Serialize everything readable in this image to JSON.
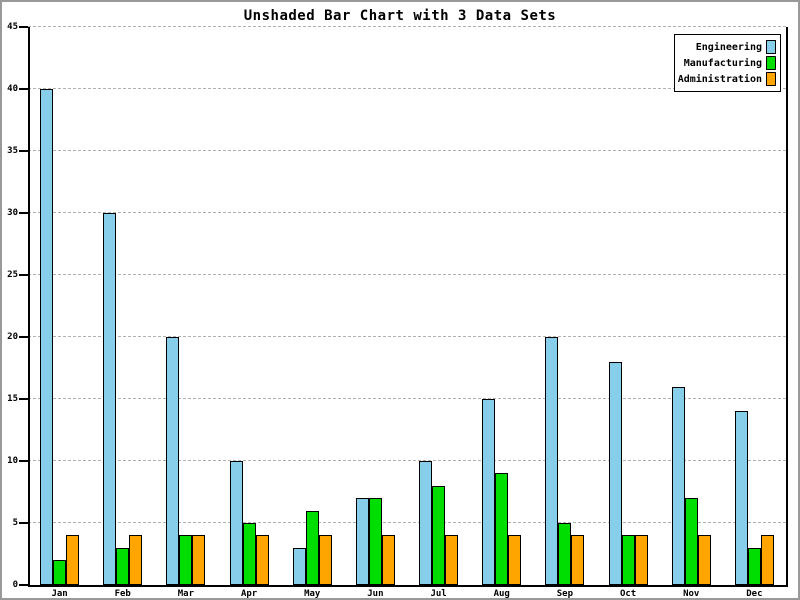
{
  "title": "Unshaded Bar Chart with 3 Data Sets",
  "colors": {
    "engineering": "#87CEEB",
    "manufacturing": "#00DD00",
    "administration": "#FFA500",
    "gridline": "#b0b0b0",
    "axis": "#000000",
    "frame_border": "#999999"
  },
  "chart_data": {
    "type": "bar",
    "title": "Unshaded Bar Chart with 3 Data Sets",
    "categories": [
      "Jan",
      "Feb",
      "Mar",
      "Apr",
      "May",
      "Jun",
      "Jul",
      "Aug",
      "Sep",
      "Oct",
      "Nov",
      "Dec"
    ],
    "series": [
      {
        "name": "Engineering",
        "color": "#87CEEB",
        "values": [
          40,
          30,
          20,
          10,
          3,
          7,
          10,
          15,
          20,
          18,
          16,
          14
        ]
      },
      {
        "name": "Manufacturing",
        "color": "#00DD00",
        "values": [
          2,
          3,
          4,
          5,
          6,
          7,
          8,
          9,
          5,
          4,
          7,
          3
        ]
      },
      {
        "name": "Administration",
        "color": "#FFA500",
        "values": [
          4,
          4,
          4,
          4,
          4,
          4,
          4,
          4,
          4,
          4,
          4,
          4
        ]
      }
    ],
    "xlabel": "",
    "ylabel": "",
    "ylim": [
      0,
      45
    ],
    "yticks": [
      0,
      5,
      10,
      15,
      20,
      25,
      30,
      35,
      40,
      45
    ],
    "grid": "horizontal-dashed",
    "legend_position": "top-right"
  }
}
